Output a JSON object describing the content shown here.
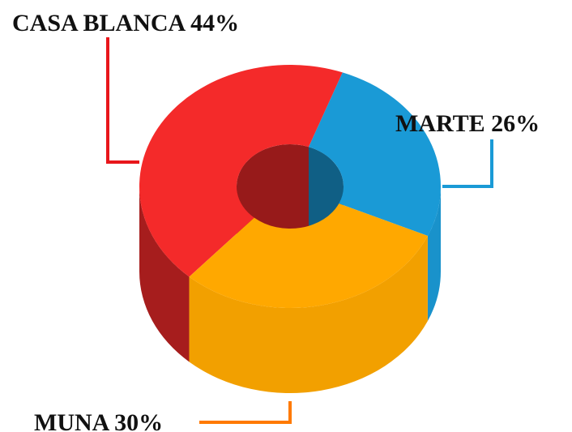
{
  "chart_data": {
    "type": "pie",
    "categories": [
      "CASA BLANCA",
      "MARTE",
      "MUNA"
    ],
    "values": [
      44,
      26,
      30
    ],
    "value_labels": [
      "44%",
      "26%",
      "30%"
    ],
    "colors": [
      "#f42a2a",
      "#1a9ad6",
      "#ffa800"
    ]
  }
}
